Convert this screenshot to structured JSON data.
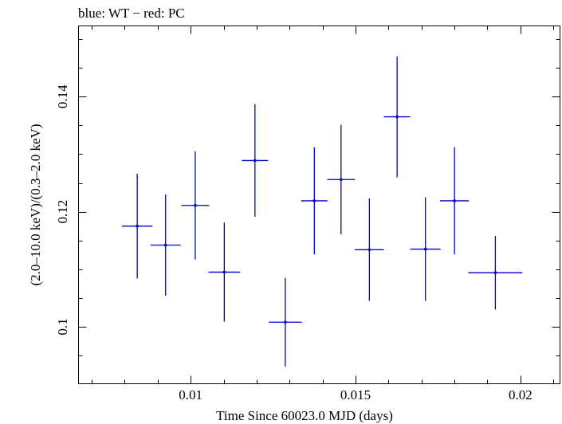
{
  "chart_data": {
    "type": "scatter",
    "title": "blue: WT − red: PC",
    "xlabel": "Time Since 60023.0 MJD (days)",
    "ylabel": "(2.0–10.0 keV)/(0.3–2.0 keV)",
    "xlim": [
      0.0066,
      0.0212
    ],
    "ylim": [
      0.0901,
      0.1523
    ],
    "x_major_ticks": [
      0.01,
      0.015,
      0.02
    ],
    "x_tick_labels": [
      "0.01",
      "0.015",
      "0.02"
    ],
    "x_minor_step": 0.001,
    "y_major_ticks": [
      0.1,
      0.12,
      0.14
    ],
    "y_tick_labels": [
      "0.1",
      "0.12",
      "0.14"
    ],
    "y_minor_step": 0.005,
    "grid": false,
    "series": [
      {
        "color": "#0000cc",
        "points": [
          {
            "x": 0.00838,
            "xerr": 0.00046,
            "y": 0.1175,
            "yerr": 0.0091
          },
          {
            "x": 0.00924,
            "xerr": 0.00046,
            "y": 0.1142,
            "yerr": 0.0088
          },
          {
            "x": 0.01014,
            "xerr": 0.00042,
            "y": 0.1211,
            "yerr": 0.0094
          },
          {
            "x": 0.01102,
            "xerr": 0.00048,
            "y": 0.1095,
            "yerr": 0.0086
          },
          {
            "x": 0.01195,
            "xerr": 0.0004,
            "y": 0.1289,
            "yerr": 0.0098
          },
          {
            "x": 0.01287,
            "xerr": 0.0005,
            "y": 0.1008,
            "yerr": 0.0077
          },
          {
            "x": 0.01375,
            "xerr": 0.0004,
            "y": 0.1219,
            "yerr": 0.0093
          },
          {
            "x": 0.01456,
            "xerr": 0.00042,
            "y": 0.1256,
            "yerr": 0.0095
          },
          {
            "x": 0.01542,
            "xerr": 0.00044,
            "y": 0.1134,
            "yerr": 0.0089
          },
          {
            "x": 0.01626,
            "xerr": 0.0004,
            "y": 0.1365,
            "yerr": 0.0105
          },
          {
            "x": 0.01712,
            "xerr": 0.00046,
            "y": 0.1135,
            "yerr": 0.009
          },
          {
            "x": 0.018,
            "xerr": 0.00044,
            "y": 0.1219,
            "yerr": 0.0093
          },
          {
            "x": 0.01924,
            "xerr": 0.00082,
            "y": 0.1094,
            "yerr": 0.0064
          }
        ]
      }
    ]
  }
}
